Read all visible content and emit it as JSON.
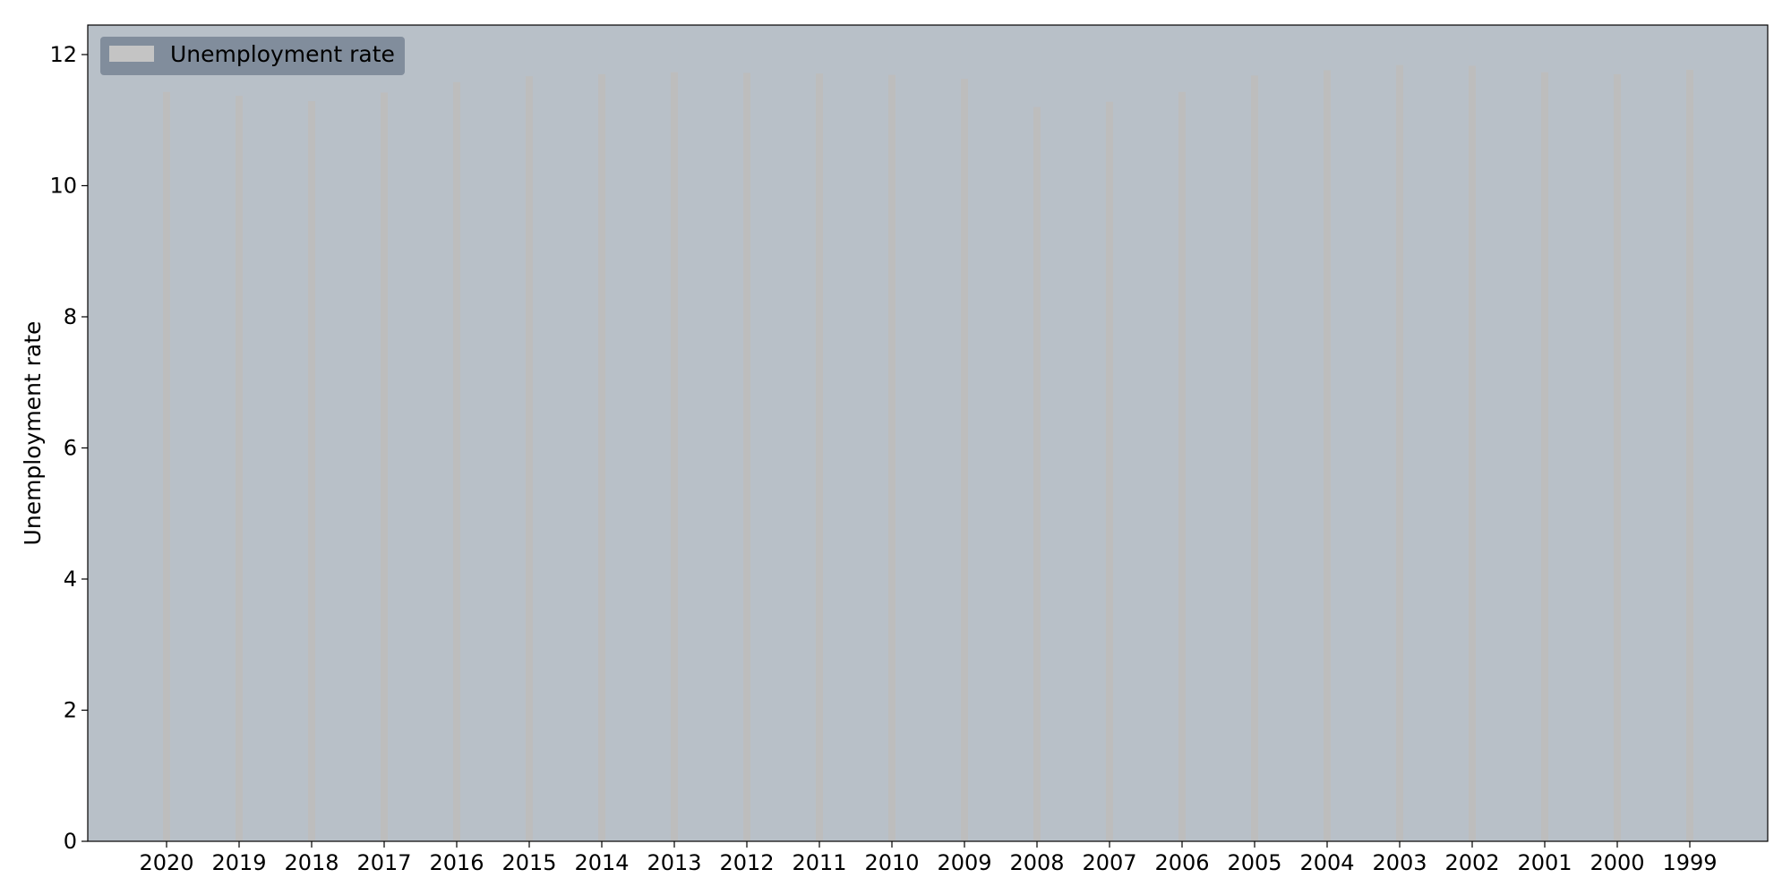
{
  "chart_data": {
    "type": "bar",
    "categories": [
      "2020",
      "2019",
      "2018",
      "2017",
      "2016",
      "2015",
      "2014",
      "2013",
      "2012",
      "2011",
      "2010",
      "2009",
      "2008",
      "2007",
      "2006",
      "2005",
      "2004",
      "2003",
      "2002",
      "2001",
      "2000",
      "1999"
    ],
    "series": [
      {
        "name": "Unemployment rate",
        "values": [
          11.43,
          11.37,
          11.29,
          11.42,
          11.58,
          11.67,
          11.7,
          11.73,
          11.72,
          11.71,
          11.69,
          11.63,
          11.2,
          11.28,
          11.43,
          11.68,
          11.76,
          11.84,
          11.83,
          11.73,
          11.7,
          11.77
        ]
      }
    ],
    "xlabel": "",
    "ylabel": "Unemployment rate",
    "ylim": [
      0,
      12.45
    ],
    "yticks": [
      0,
      2,
      4,
      6,
      8,
      10,
      12
    ],
    "grid": false,
    "legend": "upper-left",
    "colors": {
      "plot_background": "#b8c0c8",
      "bar": "#bdbdbd",
      "legend_background": "#818d9c",
      "legend_swatch": "#c4c4c4",
      "axis": "#000000"
    }
  }
}
